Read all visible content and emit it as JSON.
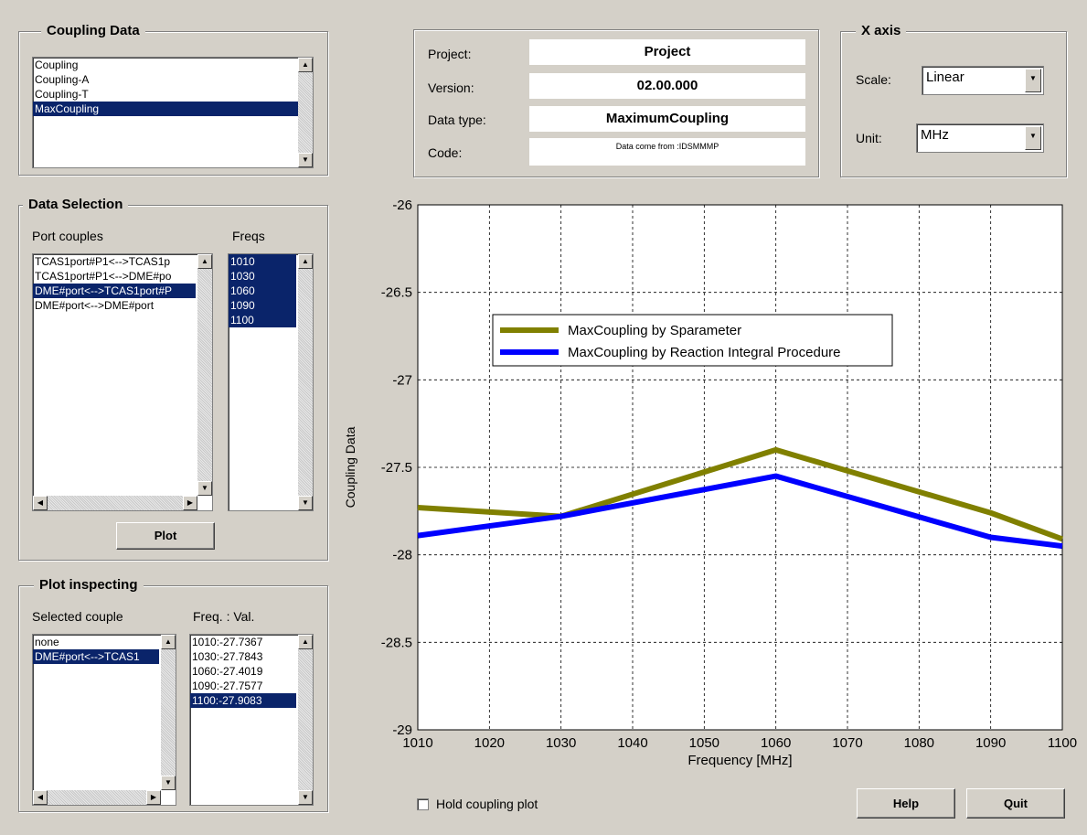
{
  "coupling_data": {
    "title": "Coupling Data",
    "items": [
      "Coupling",
      "Coupling-A",
      "Coupling-T",
      "MaxCoupling"
    ],
    "selected": "MaxCoupling"
  },
  "data_selection": {
    "title": "Data Selection",
    "port_couples_label": "Port couples",
    "freqs_label": "Freqs",
    "port_couples": [
      "TCAS1port#P1<-->TCAS1p",
      "TCAS1port#P1<-->DME#po",
      "DME#port<-->TCAS1port#P",
      "DME#port<-->DME#port"
    ],
    "freqs": [
      "1010",
      "1030",
      "1060",
      "1090",
      "1100"
    ],
    "plot_button": "Plot"
  },
  "plot_inspecting": {
    "title": "Plot inspecting",
    "selected_couple_label": "Selected couple",
    "freq_val_label": "Freq. : Val.",
    "couples": [
      "none",
      "DME#port<-->TCAS1"
    ],
    "values": [
      "1010:-27.7367",
      "1030:-27.7843",
      "1060:-27.4019",
      "1090:-27.7577",
      "1100:-27.9083"
    ]
  },
  "info": {
    "project_label": "Project:",
    "project_value": "Project",
    "version_label": "Version:",
    "version_value": "02.00.000",
    "datatype_label": "Data type:",
    "datatype_value": "MaximumCoupling",
    "code_label": "Code:",
    "code_value": "Data come from :IDSMMMP"
  },
  "x_axis": {
    "title": "X axis",
    "scale_label": "Scale:",
    "scale_value": "Linear",
    "unit_label": "Unit:",
    "unit_value": "MHz"
  },
  "bottom": {
    "hold_label": "Hold coupling plot",
    "help_button": "Help",
    "quit_button": "Quit"
  },
  "chart_data": {
    "type": "line",
    "xlabel": "Frequency [MHz]",
    "ylabel": "Coupling Data",
    "xlim": [
      1010,
      1100
    ],
    "ylim": [
      -29,
      -26
    ],
    "xticks": [
      "1010",
      "1020",
      "1030",
      "1040",
      "1050",
      "1060",
      "1070",
      "1080",
      "1090",
      "1100"
    ],
    "yticks": [
      "-26",
      "-26.5",
      "-27",
      "-27.5",
      "-28",
      "-28.5",
      "-29"
    ],
    "grid": true,
    "legend_position": "upper-left",
    "series": [
      {
        "name": "MaxCoupling by Sparameter",
        "color": "#808000",
        "x": [
          1010,
          1030,
          1060,
          1090,
          1100
        ],
        "y": [
          -27.73,
          -27.78,
          -27.4,
          -27.76,
          -27.91
        ]
      },
      {
        "name": "MaxCoupling by Reaction Integral Procedure",
        "color": "#0000ff",
        "x": [
          1010,
          1030,
          1060,
          1090,
          1100
        ],
        "y": [
          -27.89,
          -27.78,
          -27.55,
          -27.9,
          -27.95
        ]
      }
    ]
  }
}
